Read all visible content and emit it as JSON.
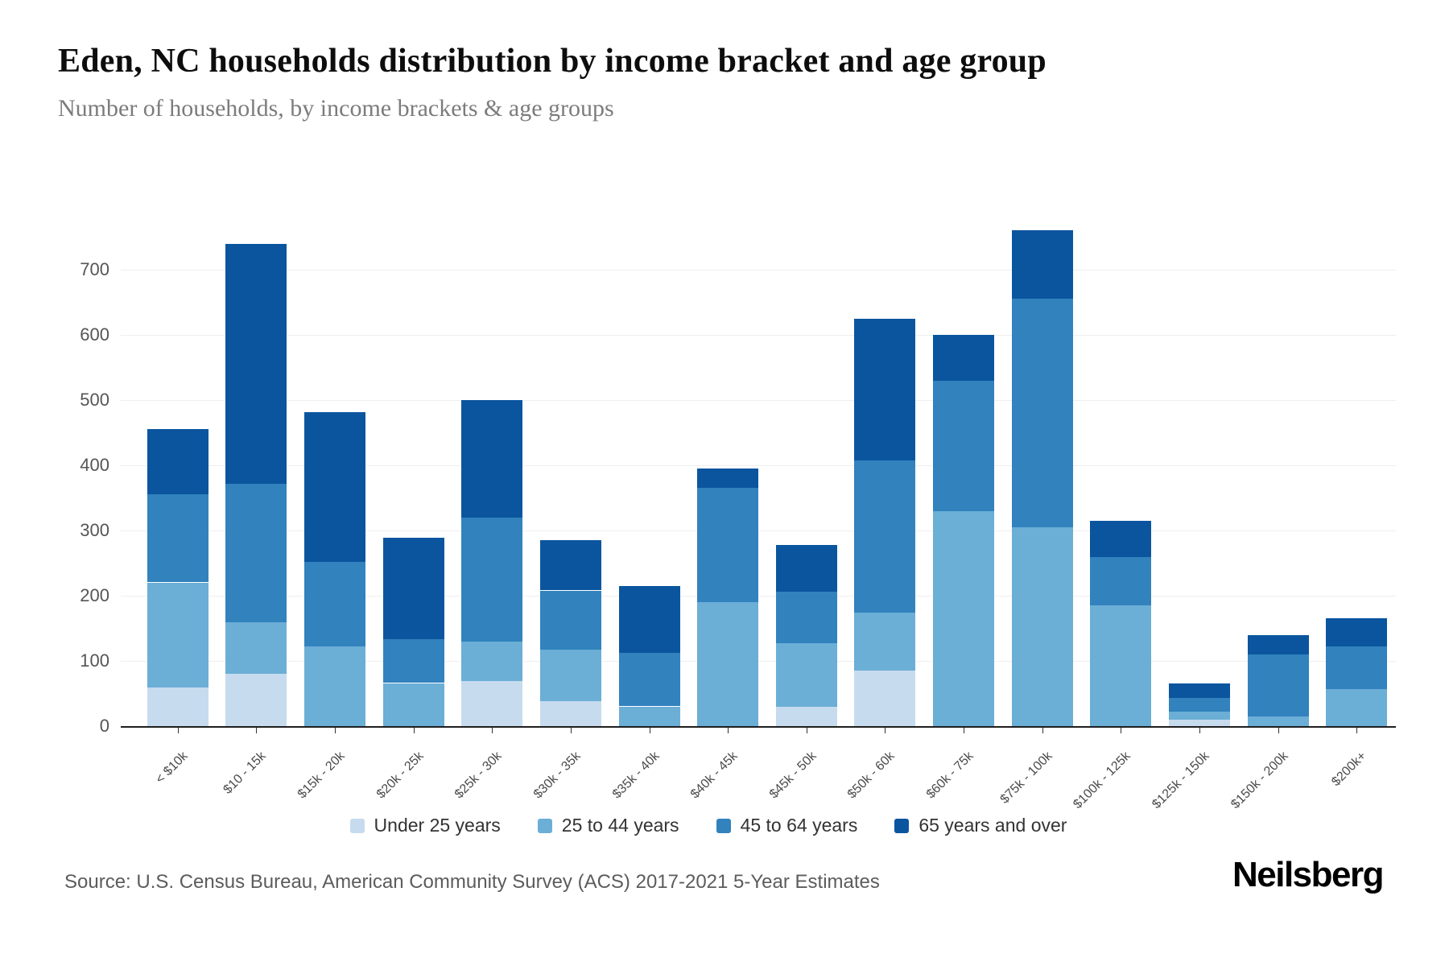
{
  "header": {
    "title": "Eden, NC households distribution by income bracket and age group",
    "subtitle": "Number of households, by income brackets & age groups"
  },
  "footer": {
    "source": "Source: U.S. Census Bureau, American Community Survey (ACS) 2017-2021 5-Year Estimates",
    "brand": "Neilsberg"
  },
  "chart_data": {
    "type": "bar",
    "stacked": true,
    "title": "Eden, NC households distribution by income bracket and age group",
    "xlabel": "",
    "ylabel": "Number of households",
    "ylim": [
      0,
      780
    ],
    "yticks": [
      0,
      100,
      200,
      300,
      400,
      500,
      600,
      700
    ],
    "grid": true,
    "legend_position": "bottom",
    "categories": [
      "< $10k",
      "$10 - 15k",
      "$15k - 20k",
      "$20k - 25k",
      "$25k - 30k",
      "$30k - 35k",
      "$35k - 40k",
      "$40k - 45k",
      "$45k - 50k",
      "$50k - 60k",
      "$60k - 75k",
      "$75k - 100k",
      "$100k - 125k",
      "$125k - 150k",
      "$150k - 200k",
      "$200k+"
    ],
    "series": [
      {
        "name": "Under 25 years",
        "color": "#c6dbee",
        "values": [
          60,
          80,
          0,
          0,
          70,
          38,
          0,
          0,
          30,
          85,
          0,
          0,
          0,
          10,
          0,
          0
        ]
      },
      {
        "name": "25 to 44 years",
        "color": "#6baed6",
        "values": [
          160,
          80,
          122,
          66,
          60,
          80,
          30,
          190,
          97,
          90,
          330,
          305,
          185,
          12,
          15,
          57
        ]
      },
      {
        "name": "45 to 64 years",
        "color": "#3182bd",
        "values": [
          135,
          212,
          130,
          68,
          190,
          90,
          82,
          175,
          80,
          233,
          200,
          350,
          75,
          21,
          95,
          65
        ]
      },
      {
        "name": "65 years and over",
        "color": "#0b559f",
        "values": [
          100,
          368,
          230,
          155,
          180,
          77,
          103,
          30,
          71,
          217,
          70,
          105,
          55,
          22,
          30,
          43
        ]
      }
    ],
    "totals": [
      455,
      740,
      482,
      289,
      500,
      285,
      215,
      395,
      278,
      625,
      600,
      760,
      315,
      65,
      140,
      165
    ]
  }
}
